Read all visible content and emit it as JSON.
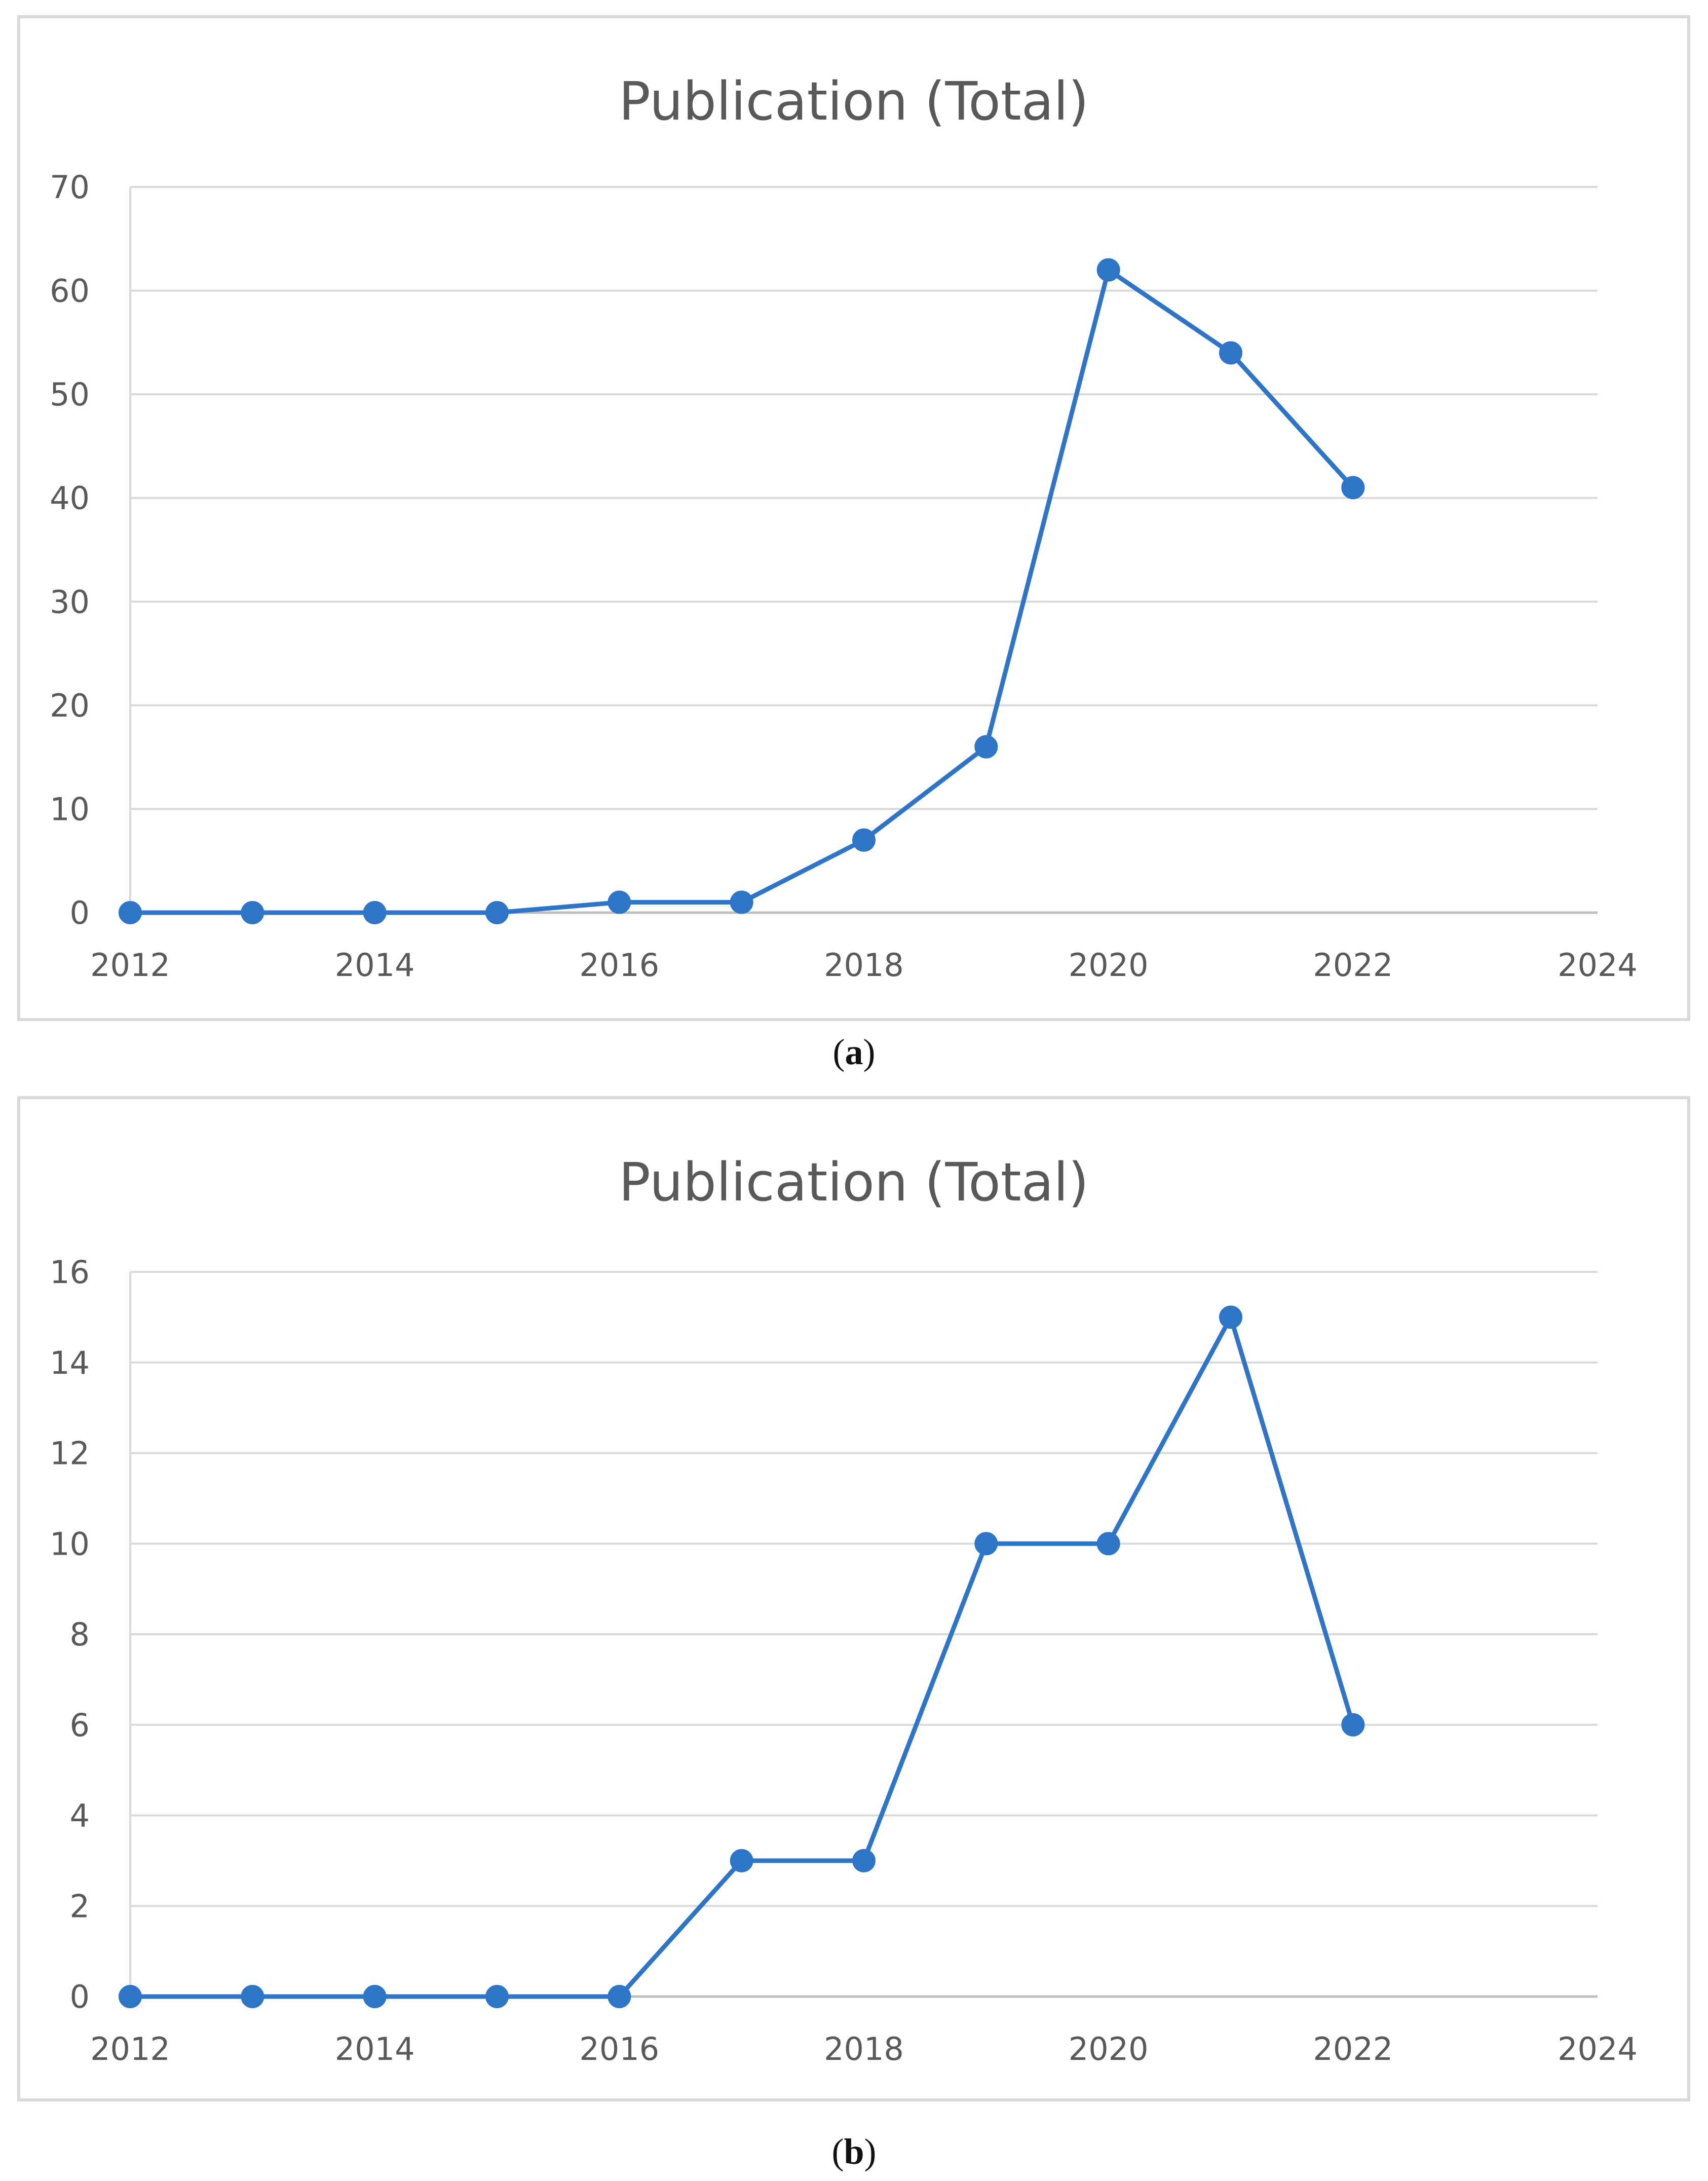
{
  "chart_data": [
    {
      "type": "line",
      "title": "Publication (Total)",
      "xlabel": "",
      "ylabel": "",
      "x": [
        2012,
        2013,
        2014,
        2015,
        2016,
        2017,
        2018,
        2019,
        2020,
        2021,
        2022
      ],
      "series": [
        {
          "values": [
            0,
            0,
            0,
            0,
            1,
            1,
            7,
            16,
            62,
            54,
            41
          ]
        }
      ],
      "xlim": [
        2012,
        2024
      ],
      "ylim": [
        0,
        70
      ],
      "xticks": [
        "2012",
        "2014",
        "2016",
        "2018",
        "2020",
        "2022",
        "2024"
      ],
      "yticks": [
        "0",
        "10",
        "20",
        "30",
        "40",
        "50",
        "60",
        "70"
      ],
      "grid": "horizontal",
      "legend": "none",
      "color": "#2e75c8"
    },
    {
      "type": "line",
      "title": "Publication (Total)",
      "xlabel": "",
      "ylabel": "",
      "x": [
        2012,
        2013,
        2014,
        2015,
        2016,
        2017,
        2018,
        2019,
        2020,
        2021,
        2022
      ],
      "series": [
        {
          "values": [
            0,
            0,
            0,
            0,
            0,
            3,
            3,
            10,
            10,
            15,
            6
          ]
        }
      ],
      "xlim": [
        2012,
        2024
      ],
      "ylim": [
        0,
        16
      ],
      "xticks": [
        "2012",
        "2014",
        "2016",
        "2018",
        "2020",
        "2022",
        "2024"
      ],
      "yticks": [
        "0",
        "2",
        "4",
        "6",
        "8",
        "10",
        "12",
        "14",
        "16"
      ],
      "grid": "horizontal",
      "legend": "none",
      "color": "#2e75c8"
    }
  ],
  "captions": {
    "a": {
      "open": "(",
      "letter": "a",
      "close": ")"
    },
    "b": {
      "open": "(",
      "letter": "b",
      "close": ")"
    }
  }
}
